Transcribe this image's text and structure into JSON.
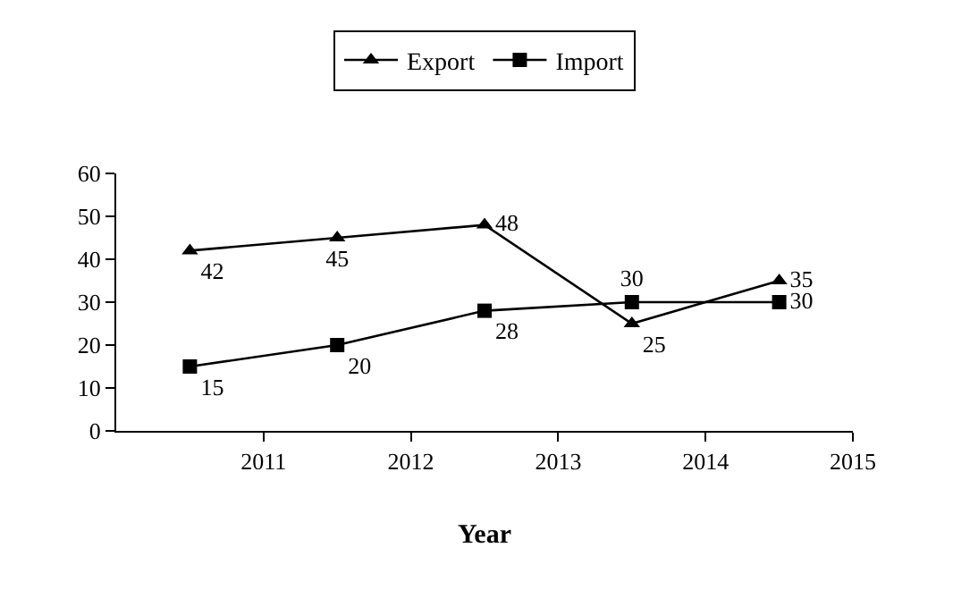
{
  "chart_data": {
    "type": "line",
    "xlabel": "Year",
    "x": [
      2010.5,
      2011.5,
      2012.5,
      2013.5,
      2014.5
    ],
    "series": [
      {
        "name": "Export",
        "color": "#000000",
        "marker": "triangle",
        "values": [
          42,
          45,
          48,
          25,
          35
        ]
      },
      {
        "name": "Import",
        "color": "#000000",
        "marker": "square",
        "values": [
          15,
          20,
          28,
          30,
          30
        ]
      }
    ],
    "xlim": [
      2010,
      2015
    ],
    "xticks": [
      2011,
      2012,
      2013,
      2014,
      2015
    ],
    "ylim": [
      0,
      60
    ],
    "yticks": [
      0,
      10,
      20,
      30,
      40,
      50,
      60
    ],
    "data_labels": true,
    "legend": "top",
    "line_style": "solid"
  }
}
